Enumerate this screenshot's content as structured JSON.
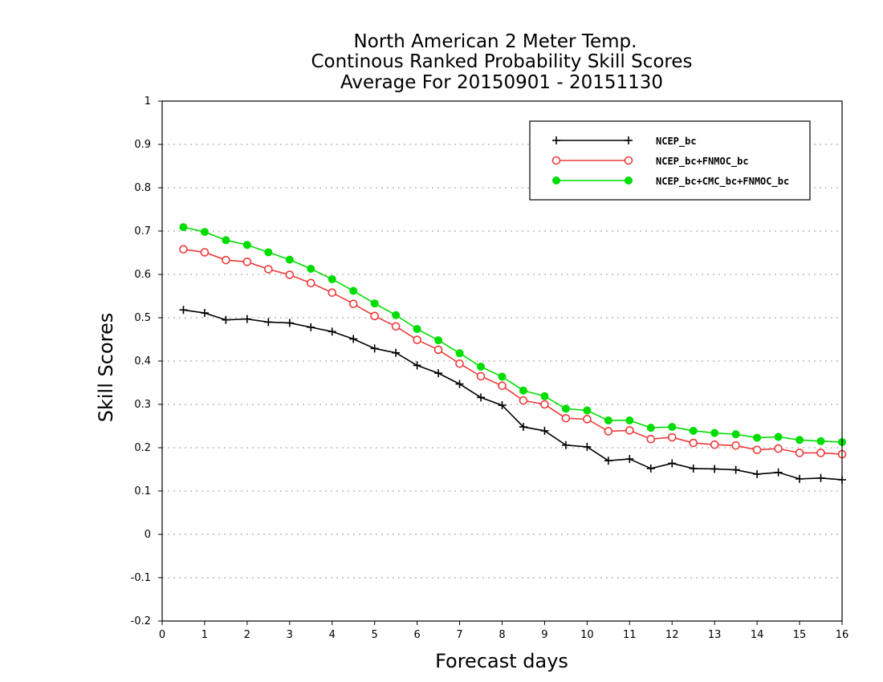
{
  "chart_data": {
    "type": "line",
    "title": [
      "North American 2 Meter Temp.",
      "Continous Ranked Probability Skill Scores",
      "Average For 20150901 - 20151130"
    ],
    "xlabel": "Forecast days",
    "ylabel": "Skill Scores",
    "xlim": [
      0,
      16
    ],
    "ylim": [
      -0.2,
      1
    ],
    "xticks": [
      "0",
      "1",
      "2",
      "3",
      "4",
      "5",
      "6",
      "7",
      "8",
      "9",
      "10",
      "11",
      "12",
      "13",
      "14",
      "15",
      "16"
    ],
    "yticks": [
      "1",
      "0.9",
      "0.8",
      "0.7",
      "0.6",
      "0.5",
      "0.4",
      "0.3",
      "0.2",
      "0.1",
      "0",
      "-0.1",
      "-0.2"
    ],
    "grid": true,
    "legend_position": "top-right",
    "x": [
      0.5,
      1,
      1.5,
      2,
      2.5,
      3,
      3.5,
      4,
      4.5,
      5,
      5.5,
      6,
      6.5,
      7,
      7.5,
      8,
      8.5,
      9,
      9.5,
      10,
      10.5,
      11,
      11.5,
      12,
      12.5,
      13,
      13.5,
      14,
      14.5,
      15,
      15.5,
      16
    ],
    "series": [
      {
        "name": "NCEP_bc",
        "color": "#000000",
        "marker": "plus",
        "values": [
          0.518,
          0.511,
          0.495,
          0.497,
          0.49,
          0.488,
          0.478,
          0.468,
          0.451,
          0.429,
          0.419,
          0.39,
          0.372,
          0.347,
          0.316,
          0.298,
          0.248,
          0.239,
          0.206,
          0.202,
          0.17,
          0.174,
          0.152,
          0.164,
          0.152,
          0.151,
          0.149,
          0.139,
          0.143,
          0.128,
          0.13,
          0.126
        ]
      },
      {
        "name": "NCEP_bc+FNMOC_bc",
        "color": "#ee3b3b",
        "marker": "open-circle",
        "values": [
          0.658,
          0.651,
          0.633,
          0.629,
          0.612,
          0.599,
          0.58,
          0.558,
          0.532,
          0.504,
          0.48,
          0.449,
          0.426,
          0.394,
          0.365,
          0.343,
          0.309,
          0.3,
          0.268,
          0.266,
          0.238,
          0.24,
          0.22,
          0.224,
          0.211,
          0.207,
          0.205,
          0.195,
          0.198,
          0.188,
          0.188,
          0.185
        ]
      },
      {
        "name": "NCEP_bc+CMC_bc+FNMOC_bc",
        "color": "#00dd00",
        "marker": "filled-circle",
        "values": [
          0.709,
          0.698,
          0.679,
          0.668,
          0.651,
          0.634,
          0.613,
          0.589,
          0.562,
          0.533,
          0.506,
          0.474,
          0.448,
          0.418,
          0.387,
          0.364,
          0.332,
          0.319,
          0.29,
          0.286,
          0.263,
          0.263,
          0.246,
          0.248,
          0.239,
          0.234,
          0.231,
          0.223,
          0.225,
          0.218,
          0.215,
          0.213
        ]
      }
    ]
  }
}
